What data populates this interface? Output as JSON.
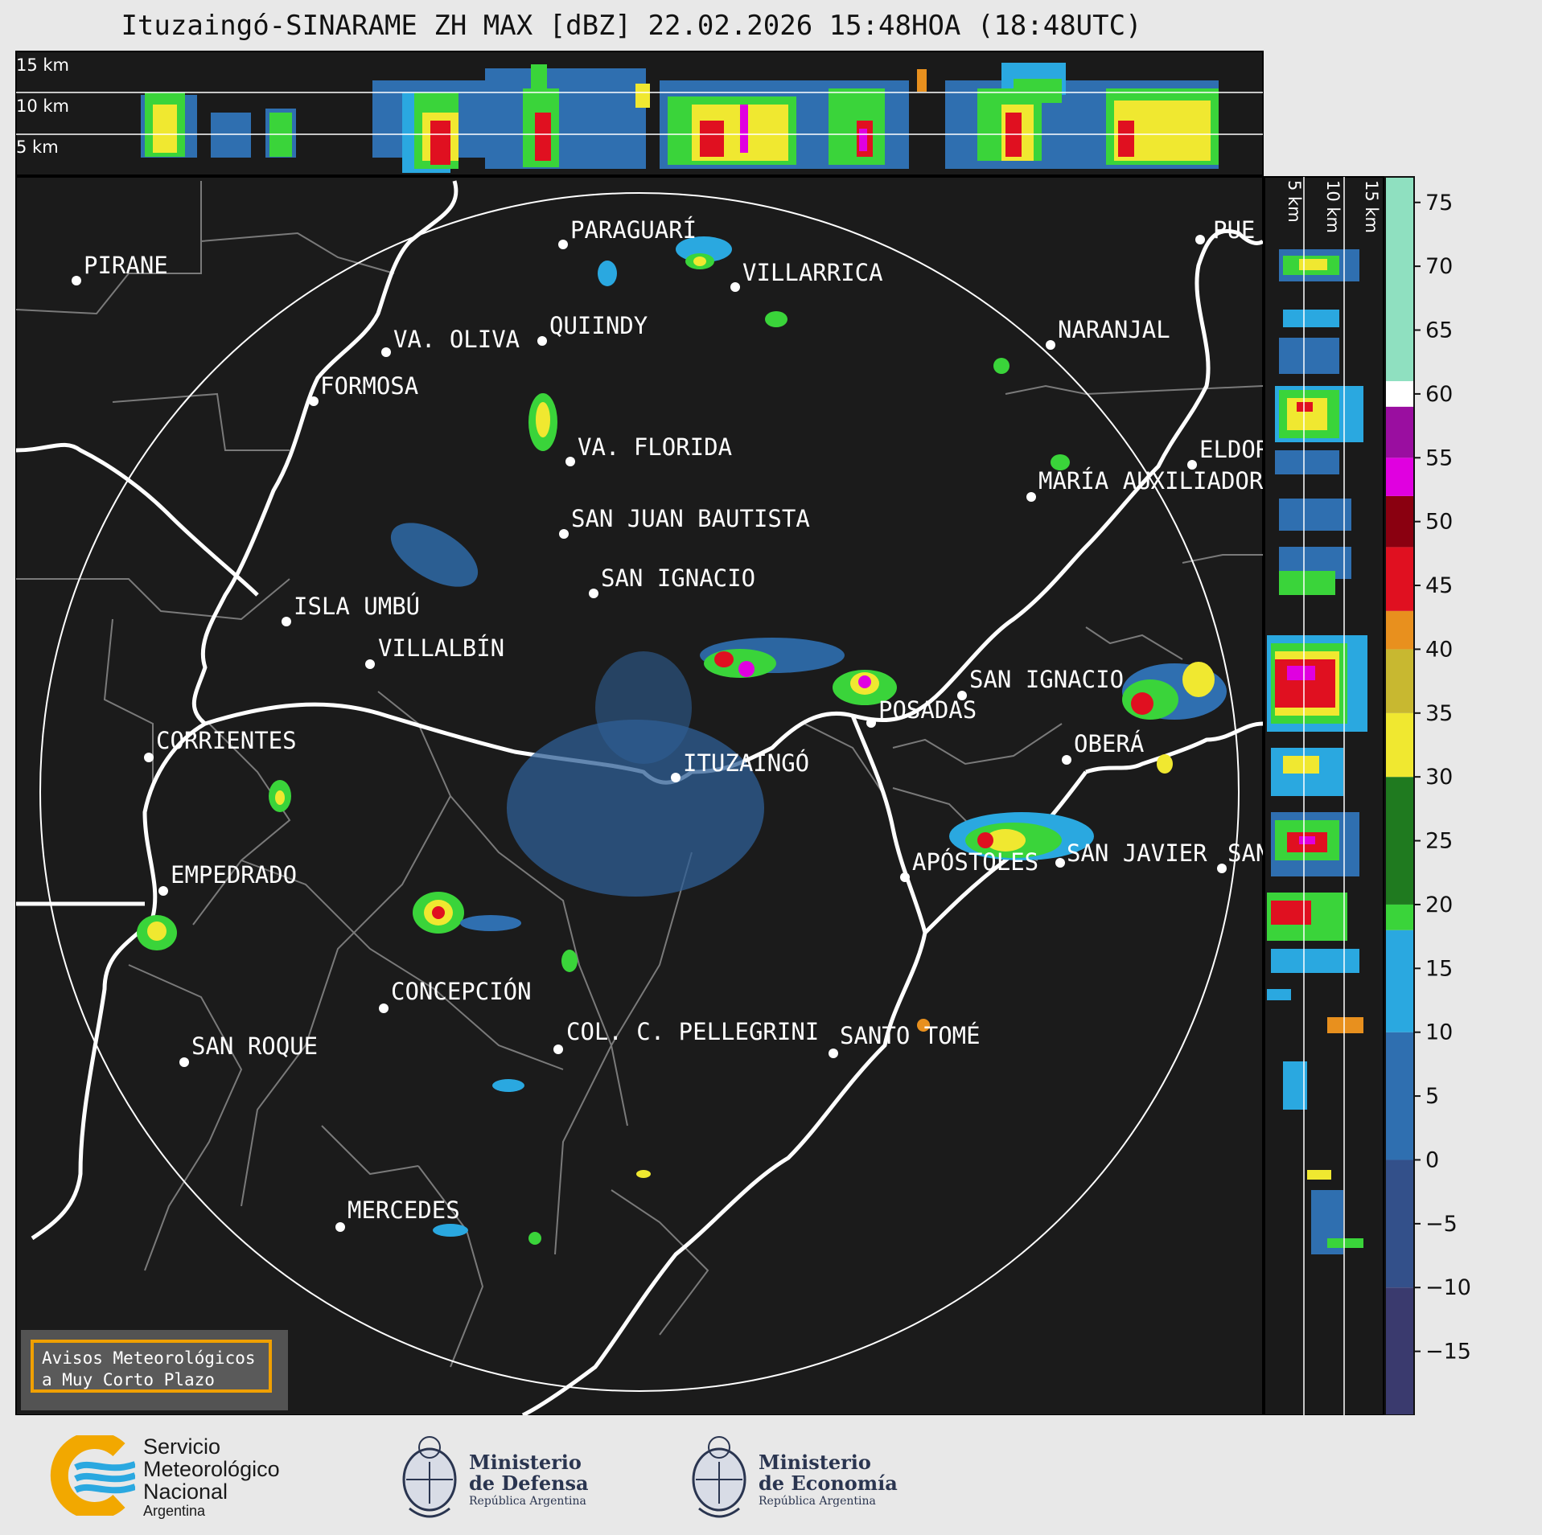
{
  "title": "Ituzaingó-SINARAME ZH MAX [dBZ] 22.02.2026 15:48HOA (18:48UTC)",
  "top_profile": {
    "height_labels": [
      "15 km",
      "10 km",
      "5 km"
    ]
  },
  "side_profile": {
    "height_labels": [
      "5 km",
      "10 km",
      "15 km"
    ]
  },
  "colorbar": {
    "unit": "dBZ",
    "ticks": [
      "75",
      "70",
      "65",
      "60",
      "55",
      "50",
      "45",
      "40",
      "35",
      "30",
      "25",
      "20",
      "15",
      "10",
      "5",
      "0",
      "−5",
      "−10",
      "−15"
    ],
    "min": -20,
    "max": 77,
    "colors": {
      "low": "#3a3a6e",
      "blue": "#2f6fb0",
      "lightblue": "#2aa8e0",
      "green": "#3ad43a",
      "darkgreen": "#1f7a1f",
      "yellow": "#f0e830",
      "orange": "#e8901e",
      "red": "#e01020",
      "darkred": "#8a0010",
      "magenta": "#e000e0",
      "purple": "#9a0ea0",
      "white": "#ffffff",
      "mint": "#8fe0c0"
    }
  },
  "cities": [
    {
      "name": "PARAGUARÍ"
    },
    {
      "name": "PIRANE"
    },
    {
      "name": "VILLARRICA"
    },
    {
      "name": "QUIINDY"
    },
    {
      "name": "VA. OLIVA"
    },
    {
      "name": "NARANJAL"
    },
    {
      "name": "FORMOSA"
    },
    {
      "name": "VA. FLORIDA"
    },
    {
      "name": "ELDOR"
    },
    {
      "name": "MARÍA AUXILIADOR"
    },
    {
      "name": "SAN JUAN BAUTISTA"
    },
    {
      "name": "SAN IGNACIO"
    },
    {
      "name": "ISLA UMBÚ"
    },
    {
      "name": "VILLALBÍN"
    },
    {
      "name": "SAN IGNACIO"
    },
    {
      "name": "POSADAS"
    },
    {
      "name": "CORRIENTES"
    },
    {
      "name": "ITUZAINGÓ"
    },
    {
      "name": "OBERÁ"
    },
    {
      "name": "EMPEDRADO"
    },
    {
      "name": "APÓSTOLES"
    },
    {
      "name": "SAN JAVIER"
    },
    {
      "name": "SAN"
    },
    {
      "name": "CONCEPCIÓN"
    },
    {
      "name": "COL. C. PELLEGRINI"
    },
    {
      "name": "SANTO TOMÉ"
    },
    {
      "name": "SAN ROQUE"
    },
    {
      "name": "MERCEDES"
    },
    {
      "name": "PUE"
    }
  ],
  "notice": {
    "line1": "Avisos Meteorológicos",
    "line2": "a Muy Corto Plazo"
  },
  "footer": {
    "smn": {
      "line1": "Servicio",
      "line2": "Meteorológico",
      "line3": "Nacional",
      "line4": "Argentina"
    },
    "defensa": {
      "line1": "Ministerio",
      "line2": "de Defensa",
      "line3": "República Argentina"
    },
    "economia": {
      "line1": "Ministerio",
      "line2": "de Economía",
      "line3": "República Argentina"
    }
  }
}
